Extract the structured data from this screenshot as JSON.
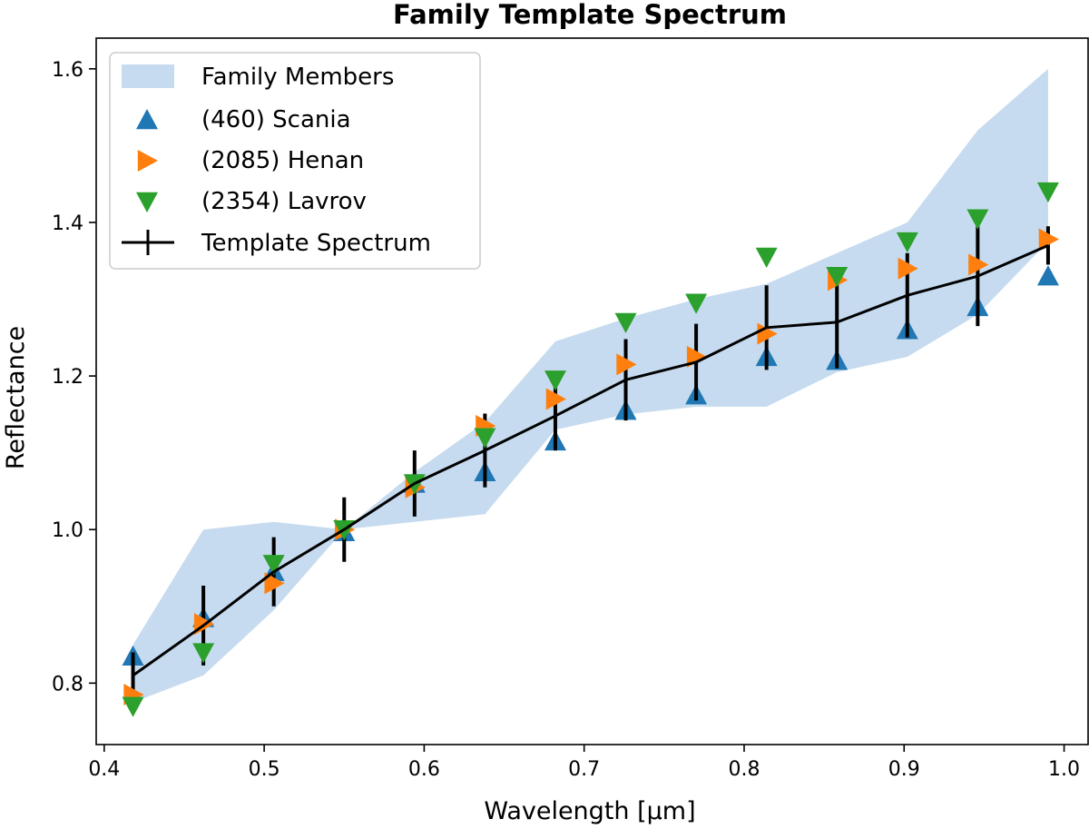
{
  "chart_data": {
    "type": "scatter",
    "title": "Family Template Spectrum",
    "xlabel": "Wavelength [μm]",
    "ylabel": "Reflectance",
    "xlim": [
      0.395,
      1.015
    ],
    "ylim": [
      0.72,
      1.64
    ],
    "xticks": [
      0.4,
      0.5,
      0.6,
      0.7,
      0.8,
      0.9,
      1.0
    ],
    "xtick_labels": [
      "0.4",
      "0.5",
      "0.6",
      "0.7",
      "0.8",
      "0.9",
      "1.0"
    ],
    "yticks": [
      0.8,
      1.0,
      1.2,
      1.4,
      1.6
    ],
    "ytick_labels": [
      "0.8",
      "1.0",
      "1.2",
      "1.4",
      "1.6"
    ],
    "legend_position": "top-left",
    "x": [
      0.418,
      0.462,
      0.506,
      0.55,
      0.594,
      0.638,
      0.682,
      0.726,
      0.77,
      0.814,
      0.858,
      0.902,
      0.946,
      0.99
    ],
    "band": {
      "name": "Family Members",
      "color": "#c6dbef",
      "lower": [
        0.775,
        0.81,
        0.895,
        1.0,
        1.01,
        1.02,
        1.13,
        1.15,
        1.16,
        1.16,
        1.205,
        1.225,
        1.28,
        1.375
      ],
      "upper": [
        0.85,
        1.0,
        1.01,
        1.0,
        1.075,
        1.14,
        1.245,
        1.275,
        1.3,
        1.32,
        1.36,
        1.4,
        1.52,
        1.6
      ]
    },
    "series": [
      {
        "name": "(460) Scania",
        "marker": "triangle-up",
        "color": "#1f77b4",
        "values": [
          0.835,
          0.885,
          0.945,
          0.997,
          1.06,
          1.075,
          1.115,
          1.155,
          1.175,
          1.225,
          1.22,
          1.26,
          1.29,
          1.33
        ]
      },
      {
        "name": "(2085) Henan",
        "marker": "triangle-right",
        "color": "#ff7f0e",
        "values": [
          0.785,
          0.877,
          0.93,
          1.0,
          1.055,
          1.135,
          1.17,
          1.215,
          1.225,
          1.255,
          1.325,
          1.34,
          1.345,
          1.378
        ]
      },
      {
        "name": "(2354) Lavrov",
        "marker": "triangle-down",
        "color": "#2ca02c",
        "values": [
          0.77,
          0.84,
          0.955,
          1.0,
          1.06,
          1.12,
          1.195,
          1.27,
          1.295,
          1.355,
          1.33,
          1.375,
          1.405,
          1.44
        ]
      }
    ],
    "template": {
      "name": "Template Spectrum",
      "color": "#000000",
      "values": [
        0.81,
        0.875,
        0.945,
        1.0,
        1.06,
        1.103,
        1.148,
        1.195,
        1.218,
        1.263,
        1.27,
        1.305,
        1.33,
        1.37
      ],
      "errors": [
        0.03,
        0.052,
        0.045,
        0.042,
        0.043,
        0.048,
        0.045,
        0.053,
        0.05,
        0.055,
        0.06,
        0.055,
        0.065,
        0.025
      ]
    }
  }
}
